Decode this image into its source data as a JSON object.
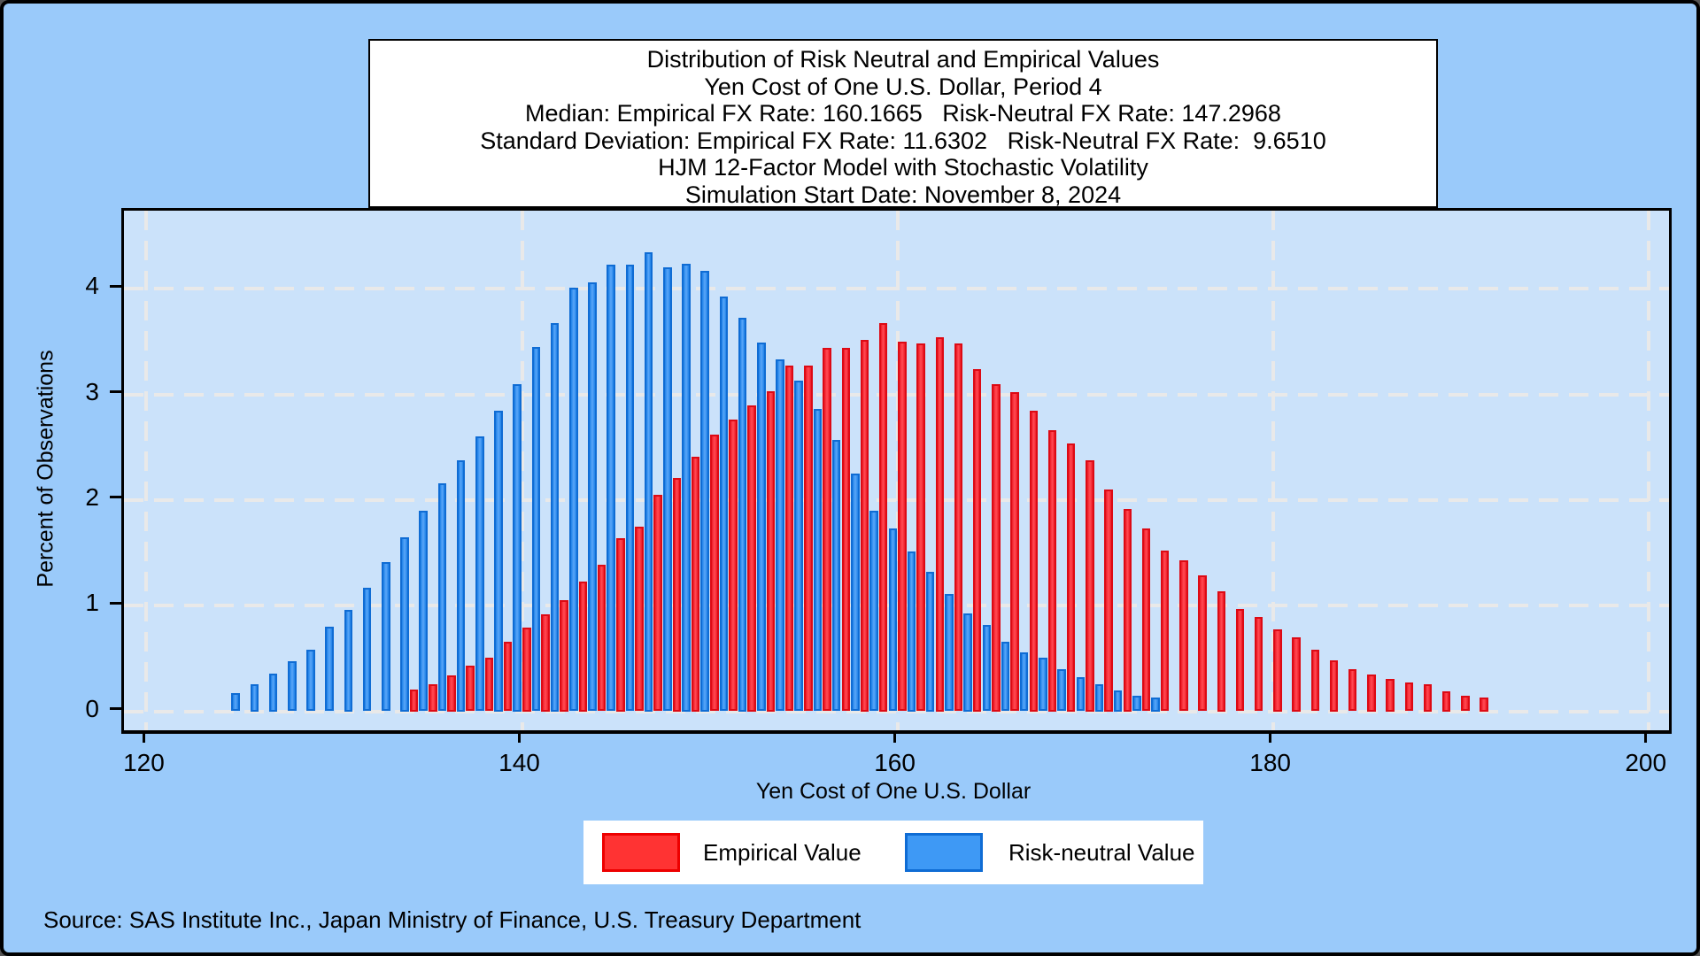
{
  "title_box": {
    "lines": [
      "Distribution of Risk Neutral and Empirical Values",
      "Yen Cost of One U.S. Dollar, Period 4",
      "Median: Empirical FX Rate: 160.1665   Risk-Neutral FX Rate: 147.2968",
      "Standard Deviation: Empirical FX Rate: 11.6302   Risk-Neutral FX Rate:  9.6510",
      "HJM 12-Factor Model with Stochastic Volatility",
      "Simulation Start Date: November 8, 2024"
    ]
  },
  "chart_data": {
    "type": "bar",
    "title": "Distribution of Risk Neutral and Empirical Values",
    "xlabel": "Yen Cost of One U.S. Dollar",
    "ylabel": "Percent of Observations",
    "x_ticks": [
      120,
      140,
      160,
      180,
      200
    ],
    "y_ticks": [
      0,
      1,
      2,
      3,
      4
    ],
    "xlim": [
      118.8,
      201.1
    ],
    "ylim": [
      -0.18,
      4.74
    ],
    "grid": "dashed",
    "grid_color": "#e9e9e9",
    "plot_bg": "#cbe2fa",
    "outer_bg": "#9acafa",
    "legend_position": "bottom-center",
    "bin_width": 1,
    "series": [
      {
        "name": "Empirical Value",
        "key": "red",
        "color": "#ff3333",
        "edge": "#ed0000",
        "start_bin": 134,
        "center_offset": 0.25,
        "values": [
          0.21,
          0.26,
          0.34,
          0.43,
          0.51,
          0.66,
          0.79,
          0.92,
          1.05,
          1.23,
          1.39,
          1.64,
          1.75,
          2.05,
          2.21,
          2.41,
          2.62,
          2.76,
          2.9,
          3.03,
          3.27,
          3.27,
          3.44,
          3.44,
          3.52,
          3.68,
          3.5,
          3.48,
          3.54,
          3.48,
          3.24,
          3.1,
          3.02,
          2.85,
          2.66,
          2.54,
          2.38,
          2.1,
          1.92,
          1.73,
          1.52,
          1.43,
          1.29,
          1.14,
          0.97,
          0.89,
          0.78,
          0.7,
          0.58,
          0.48,
          0.4,
          0.35,
          0.31,
          0.27,
          0.26,
          0.19,
          0.15,
          0.13
        ]
      },
      {
        "name": "Risk-neutral Value",
        "key": "blue",
        "color": "#3e99f5",
        "edge": "#0f6cd4",
        "start_bin": 125,
        "center_offset": -0.25,
        "values": [
          0.17,
          0.26,
          0.36,
          0.47,
          0.58,
          0.8,
          0.96,
          1.17,
          1.41,
          1.65,
          1.9,
          2.16,
          2.38,
          2.6,
          2.85,
          3.1,
          3.45,
          3.68,
          4.01,
          4.06,
          4.23,
          4.23,
          4.35,
          4.2,
          4.24,
          4.17,
          3.93,
          3.73,
          3.49,
          3.33,
          3.13,
          2.86,
          2.57,
          2.25,
          1.9,
          1.73,
          1.51,
          1.32,
          1.11,
          0.93,
          0.82,
          0.66,
          0.56,
          0.51,
          0.4,
          0.32,
          0.26,
          0.2,
          0.15,
          0.13
        ]
      }
    ]
  },
  "legend": {
    "items": [
      {
        "label": "Empirical Value"
      },
      {
        "label": "Risk-neutral Value"
      }
    ]
  },
  "footer": {
    "source": "Source: SAS Institute Inc., Japan Ministry of Finance, U.S. Treasury Department"
  }
}
